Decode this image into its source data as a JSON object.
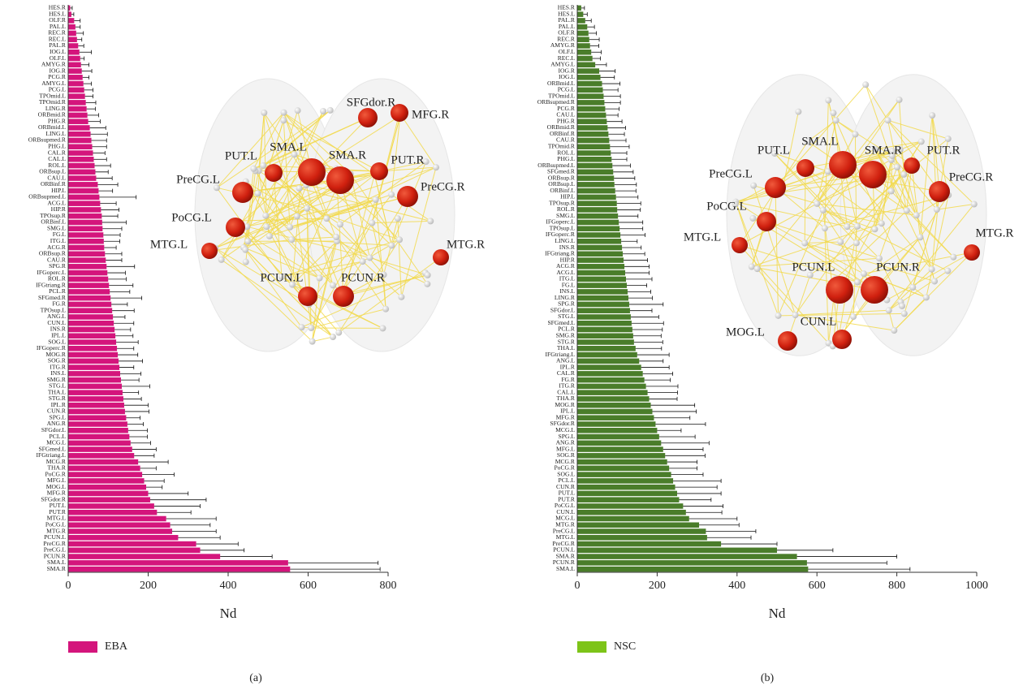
{
  "chart_data": [
    {
      "type": "bar",
      "orientation": "horizontal",
      "xlabel": "Nd",
      "xlim": [
        0,
        800
      ],
      "xticks": [
        0,
        200,
        400,
        600,
        800
      ],
      "categories": [
        "HES.R",
        "HES.L",
        "OLF.R",
        "PAL.L",
        "REC.R",
        "REC.L",
        "PAL.R",
        "IOG.L",
        "OLF.L",
        "AMYG.R",
        "IOG.R",
        "PCG.R",
        "AMYG.L",
        "PCG.L",
        "TPOmid.L",
        "TPOmid.R",
        "LING.R",
        "ORBmid.R",
        "PHG.R",
        "ORBmid.L",
        "LING.L",
        "ORBsupmed.R",
        "PHG.L",
        "CAL.R",
        "CAL.L",
        "ROL.L",
        "ORBsup.L",
        "CAU.L",
        "ORBinf.R",
        "HIP.L",
        "ORBsupmed.L",
        "ACG.L",
        "HIP.R",
        "TPOsup.R",
        "ORBinf.L",
        "SMG.L",
        "FG.L",
        "ITG.L",
        "ACG.R",
        "ORBsup.R",
        "CAU.R",
        "SPG.R",
        "IFGoperc.L",
        "ROL.R",
        "IFGtriang.R",
        "PCL.R",
        "SFGmed.R",
        "FG.R",
        "TPOsup.L",
        "ANG.L",
        "CUN.L",
        "INS.R",
        "IPL.L",
        "SOG.L",
        "IFGoperc.R",
        "MOG.R",
        "SOG.R",
        "ITG.R",
        "INS.L",
        "SMG.R",
        "STG.L",
        "THA.L",
        "STG.R",
        "IPL.R",
        "CUN.R",
        "SPG.L",
        "ANG.R",
        "SFGdor.L",
        "PCL.L",
        "MCG.L",
        "SFGmed.L",
        "IFGtriang.L",
        "MCG.R",
        "THA.R",
        "PoCG.R",
        "MFG.L",
        "MOG.L",
        "MFG.R",
        "SFGdor.R",
        "PUT.L",
        "PUT.R",
        "MTG.L",
        "PoCG.L",
        "MTG.R",
        "PCUN.L",
        "PreCG.R",
        "PreCG.L",
        "PCUN.R",
        "SMA.L",
        "SMA.R"
      ],
      "series": [
        {
          "name": "EBA",
          "color": "#d4157c",
          "legend_color": "#d4157c",
          "values": [
            5,
            8,
            15,
            18,
            20,
            22,
            25,
            28,
            30,
            32,
            34,
            36,
            38,
            40,
            42,
            44,
            46,
            48,
            50,
            54,
            56,
            58,
            60,
            62,
            64,
            66,
            68,
            70,
            74,
            76,
            78,
            80,
            82,
            84,
            85,
            86,
            88,
            89,
            90,
            92,
            94,
            96,
            98,
            100,
            102,
            104,
            106,
            108,
            110,
            112,
            114,
            116,
            118,
            120,
            122,
            124,
            126,
            128,
            130,
            132,
            134,
            136,
            138,
            140,
            142,
            145,
            148,
            150,
            153,
            156,
            160,
            165,
            175,
            180,
            185,
            190,
            195,
            200,
            205,
            215,
            222,
            245,
            255,
            260,
            275,
            320,
            330,
            380,
            550,
            555
          ],
          "errors": [
            5,
            6,
            15,
            12,
            18,
            12,
            14,
            30,
            10,
            20,
            25,
            16,
            20,
            22,
            20,
            25,
            22,
            28,
            30,
            40,
            42,
            38,
            36,
            30,
            32,
            40,
            32,
            40,
            50,
            35,
            92,
            40,
            45,
            40,
            60,
            48,
            42,
            40,
            30,
            42,
            40,
            70,
            45,
            45,
            60,
            50,
            78,
            40,
            55,
            30,
            50,
            40,
            44,
            55,
            42,
            50,
            60,
            36,
            52,
            45,
            70,
            40,
            45,
            60,
            60,
            35,
            40,
            48,
            45,
            50,
            60,
            50,
            75,
            40,
            80,
            50,
            40,
            100,
            140,
            115,
            85,
            125,
            100,
            110,
            105,
            105,
            110,
            130,
            225,
            225
          ]
        }
      ]
    },
    {
      "type": "bar",
      "orientation": "horizontal",
      "xlabel": "Nd",
      "xlim": [
        0,
        1000
      ],
      "xticks": [
        0,
        200,
        400,
        600,
        800,
        1000
      ],
      "categories": [
        "HES.R",
        "HES.L",
        "PAL.R",
        "PAL.L",
        "OLF.R",
        "REC.R",
        "AMYG.R",
        "OLF.L",
        "REC.L",
        "AMYG.L",
        "IOG.R",
        "IOG.L",
        "ORBmid.L",
        "PCG.L",
        "TPOmid.L",
        "ORBsupmed.R",
        "PCG.R",
        "CAU.L",
        "PHG.R",
        "ORBmid.R",
        "ORBinf.R",
        "CAU.R",
        "TPOmid.R",
        "ROL.L",
        "PHG.L",
        "ORBsupmed.L",
        "SFGmed.R",
        "ORBsup.R",
        "ORBsup.L",
        "ORBinf.L",
        "HIP.L",
        "TPOsup.R",
        "ROL.R",
        "SMG.L",
        "IFGoperc.L",
        "TPOsup.L",
        "IFGoperc.R",
        "LING.L",
        "INS.R",
        "IFGtriang.R",
        "HIP.R",
        "ACG.R",
        "ACG.L",
        "ITG.L",
        "FG.L",
        "INS.L",
        "LING.R",
        "SPG.R",
        "SFGdor.L",
        "STG.L",
        "SFGmed.L",
        "PCL.R",
        "SMG.R",
        "STG.R",
        "THA.L",
        "IFGtriang.L",
        "ANG.L",
        "IPL.R",
        "CAL.R",
        "FG.R",
        "ITG.R",
        "CAL.L",
        "THA.R",
        "MOG.R",
        "IPL.L",
        "MFG.R",
        "SFGdor.R",
        "MCG.L",
        "SPG.L",
        "ANG.R",
        "MFG.L",
        "SOG.R",
        "MCG.R",
        "PoCG.R",
        "SOG.L",
        "PCL.L",
        "CUN.R",
        "PUT.L",
        "PUT.R",
        "PoCG.L",
        "CUN.L",
        "MCG.L",
        "MTG.R",
        "PreCG.L",
        "MTG.L",
        "PreCG.R",
        "PCUN.L",
        "SMA.R",
        "PCUN.R",
        "SMA.L"
      ],
      "series": [
        {
          "name": "NSC",
          "color": "#4a7d2a",
          "legend_color": "#7dc418",
          "values": [
            10,
            15,
            20,
            25,
            28,
            30,
            32,
            35,
            38,
            45,
            55,
            58,
            62,
            64,
            66,
            68,
            70,
            72,
            74,
            76,
            78,
            80,
            82,
            84,
            86,
            88,
            90,
            92,
            93,
            95,
            97,
            99,
            100,
            102,
            104,
            106,
            108,
            110,
            112,
            114,
            116,
            118,
            120,
            122,
            124,
            126,
            128,
            130,
            132,
            134,
            136,
            138,
            140,
            142,
            146,
            150,
            155,
            160,
            164,
            168,
            172,
            176,
            180,
            184,
            188,
            192,
            196,
            200,
            205,
            210,
            215,
            220,
            225,
            230,
            235,
            240,
            245,
            250,
            255,
            265,
            272,
            280,
            305,
            322,
            325,
            360,
            500,
            550,
            575,
            578
          ],
          "errors": [
            8,
            10,
            15,
            18,
            20,
            25,
            22,
            25,
            20,
            28,
            40,
            35,
            45,
            38,
            42,
            40,
            35,
            30,
            38,
            45,
            40,
            42,
            48,
            40,
            38,
            45,
            50,
            52,
            55,
            52,
            55,
            60,
            58,
            50,
            60,
            58,
            62,
            40,
            48,
            55,
            60,
            62,
            60,
            65,
            50,
            58,
            60,
            85,
            55,
            70,
            80,
            75,
            70,
            72,
            65,
            80,
            60,
            70,
            75,
            65,
            80,
            75,
            70,
            110,
            110,
            90,
            125,
            60,
            90,
            120,
            100,
            100,
            75,
            70,
            80,
            120,
            105,
            110,
            80,
            100,
            90,
            120,
            100,
            125,
            110,
            140,
            140,
            250,
            200,
            255
          ]
        }
      ]
    }
  ],
  "networks": [
    {
      "nodes": [
        "SFGdor.R",
        "MFG.R",
        "PUT.L",
        "SMA.L",
        "SMA.R",
        "PUT.R",
        "PreCG.L",
        "PreCG.R",
        "PoCG.L",
        "MTG.L",
        "MTG.R",
        "PCUN.L",
        "PCUN.R"
      ]
    },
    {
      "nodes": [
        "SMA.L",
        "PUT.L",
        "SMA.R",
        "PUT.R",
        "PreCG.L",
        "PreCG.R",
        "PoCG.L",
        "MTG.L",
        "MTG.R",
        "PCUN.L",
        "PCUN.R",
        "CUN.L",
        "MOG.L"
      ]
    }
  ],
  "captions": [
    "(a)",
    "(b)"
  ]
}
